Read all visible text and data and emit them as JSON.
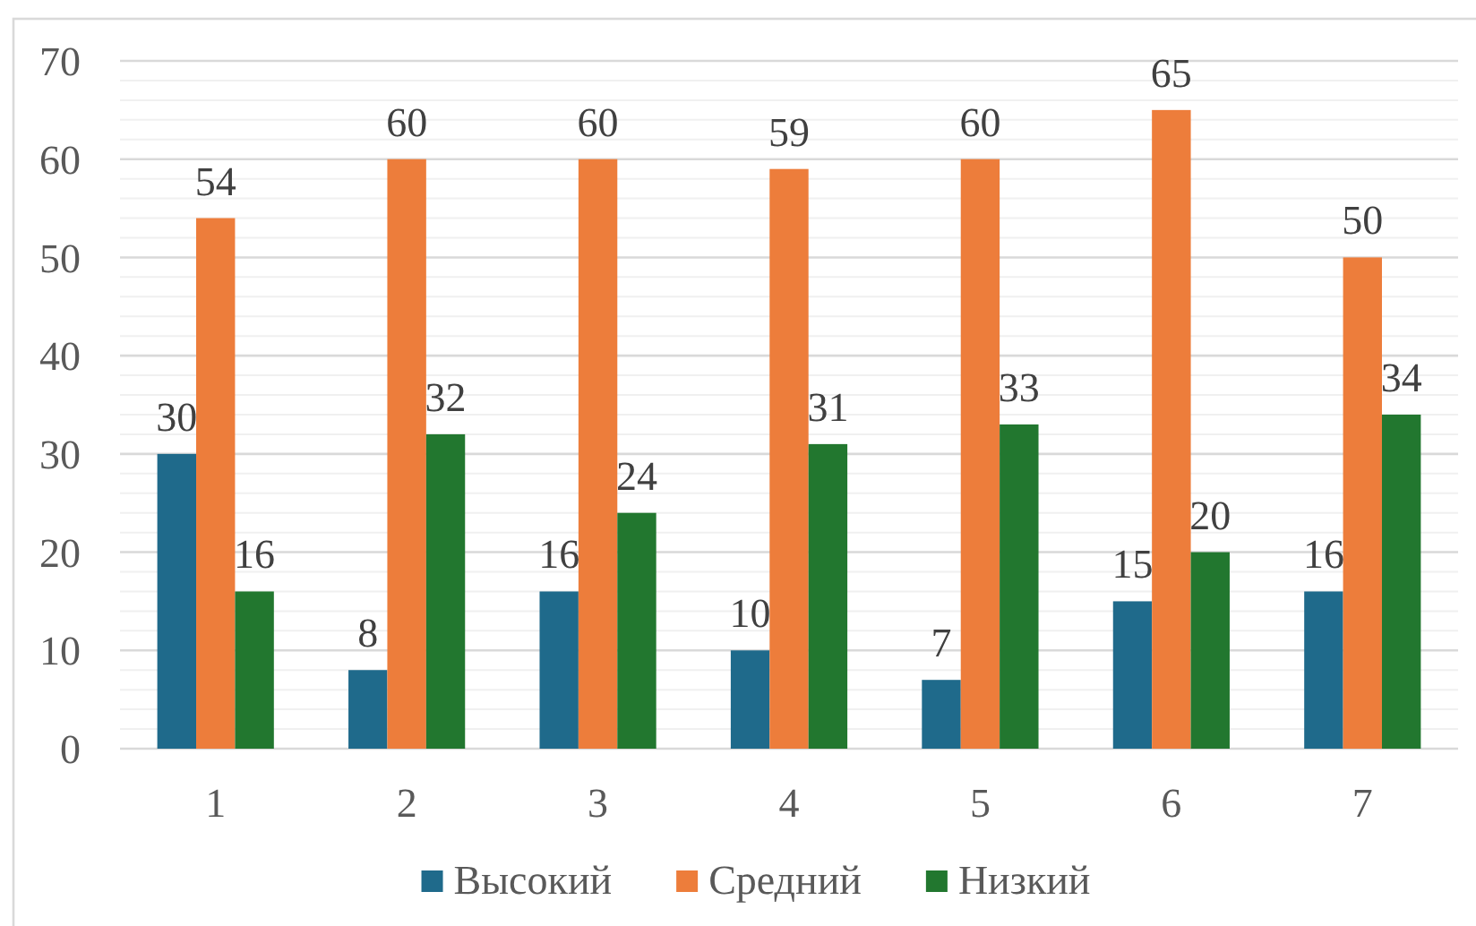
{
  "chart_data": {
    "type": "bar",
    "categories": [
      "1",
      "2",
      "3",
      "4",
      "5",
      "6",
      "7"
    ],
    "series": [
      {
        "name": "Высокий",
        "color": "#1f6a8b",
        "values": [
          30,
          8,
          16,
          10,
          7,
          15,
          16
        ]
      },
      {
        "name": "Средний",
        "color": "#ed7d3b",
        "values": [
          54,
          60,
          60,
          59,
          60,
          65,
          50
        ]
      },
      {
        "name": "Низкий",
        "color": "#22772f",
        "values": [
          16,
          32,
          24,
          31,
          33,
          20,
          34
        ]
      }
    ],
    "ylim": [
      0,
      70
    ],
    "yticks": [
      0,
      {
        "value": 2,
        "label": null
      },
      {
        "value": 4,
        "label": null
      },
      {
        "value": 6,
        "label": null
      },
      {
        "value": 8,
        "label": null
      },
      10,
      {
        "value": 12,
        "label": null
      },
      {
        "value": 14,
        "label": null
      },
      {
        "value": 16,
        "label": null
      },
      {
        "value": 18,
        "label": null
      },
      20,
      {
        "value": 22,
        "label": null
      },
      {
        "value": 24,
        "label": null
      },
      {
        "value": 26,
        "label": null
      },
      {
        "value": 28,
        "label": null
      },
      30,
      {
        "value": 32,
        "label": null
      },
      {
        "value": 34,
        "label": null
      },
      {
        "value": 36,
        "label": null
      },
      {
        "value": 38,
        "label": null
      },
      40,
      {
        "value": 42,
        "label": null
      },
      {
        "value": 44,
        "label": null
      },
      {
        "value": 46,
        "label": null
      },
      {
        "value": 48,
        "label": null
      },
      50,
      {
        "value": 52,
        "label": null
      },
      {
        "value": 54,
        "label": null
      },
      {
        "value": 56,
        "label": null
      },
      {
        "value": 58,
        "label": null
      },
      60,
      {
        "value": 62,
        "label": null
      },
      {
        "value": 64,
        "label": null
      },
      {
        "value": 66,
        "label": null
      },
      {
        "value": 68,
        "label": null
      },
      70
    ],
    "grid": "y",
    "data_labels": true,
    "legend": "bottom"
  }
}
